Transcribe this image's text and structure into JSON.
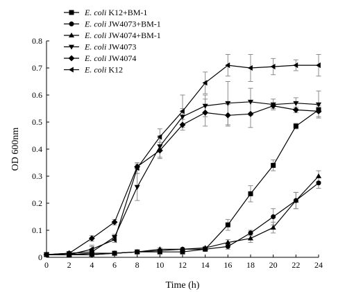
{
  "chart_data": {
    "type": "line",
    "xlabel": "Time (h)",
    "ylabel": "OD 600nm",
    "xlim": [
      0,
      24
    ],
    "ylim": [
      0,
      0.8
    ],
    "xticks": [
      0,
      2,
      4,
      6,
      8,
      10,
      12,
      14,
      16,
      18,
      20,
      22,
      24
    ],
    "yticks": [
      0,
      0.1,
      0.2,
      0.3,
      0.4,
      0.5,
      0.6,
      0.7,
      0.8
    ],
    "grid": false,
    "legend_position": "top-left",
    "x": [
      0,
      2,
      4,
      6,
      8,
      10,
      12,
      14,
      16,
      18,
      20,
      22,
      24
    ],
    "series": [
      {
        "name_italic": "E. coli",
        "name_rest": " K12+BM-1",
        "marker": "square",
        "values": [
          0.01,
          0.01,
          0.015,
          0.015,
          0.02,
          0.02,
          0.02,
          0.03,
          0.12,
          0.235,
          0.34,
          0.485,
          0.545
        ],
        "errors": [
          0.005,
          0.005,
          0.005,
          0.005,
          0.005,
          0.005,
          0.005,
          0.005,
          0.02,
          0.03,
          0.02,
          0.01,
          0.01
        ]
      },
      {
        "name_italic": "E. coli",
        "name_rest": " JW4073+BM-1",
        "marker": "circle",
        "values": [
          0.01,
          0.01,
          0.01,
          0.015,
          0.02,
          0.025,
          0.03,
          0.03,
          0.04,
          0.09,
          0.15,
          0.21,
          0.275
        ],
        "errors": [
          0.005,
          0.005,
          0.005,
          0.005,
          0.005,
          0.005,
          0.005,
          0.005,
          0.01,
          0.01,
          0.03,
          0.03,
          0.02
        ]
      },
      {
        "name_italic": "E. coli",
        "name_rest": " JW4074+BM-1",
        "marker": "triangle-up",
        "values": [
          0.01,
          0.01,
          0.01,
          0.015,
          0.02,
          0.03,
          0.03,
          0.035,
          0.055,
          0.07,
          0.11,
          0.21,
          0.3
        ],
        "errors": [
          0.005,
          0.005,
          0.005,
          0.005,
          0.005,
          0.005,
          0.005,
          0.005,
          0.01,
          0.015,
          0.02,
          0.03,
          0.02
        ]
      },
      {
        "name_italic": "E. coli",
        "name_rest": " JW4073",
        "marker": "triangle-down",
        "values": [
          0.01,
          0.015,
          0.02,
          0.075,
          0.26,
          0.41,
          0.52,
          0.56,
          0.57,
          0.575,
          0.565,
          0.57,
          0.565
        ],
        "errors": [
          0.005,
          0.005,
          0.02,
          0.01,
          0.05,
          0.04,
          0.03,
          0.04,
          0.08,
          0.05,
          0.02,
          0.02,
          0.05
        ]
      },
      {
        "name_italic": "E. coli",
        "name_rest": " JW4074",
        "marker": "diamond",
        "values": [
          0.01,
          0.015,
          0.07,
          0.13,
          0.335,
          0.395,
          0.49,
          0.535,
          0.525,
          0.53,
          0.56,
          0.545,
          0.54
        ],
        "errors": [
          0.005,
          0.005,
          0.01,
          0.01,
          0.01,
          0.03,
          0.02,
          0.05,
          0.04,
          0.05,
          0.01,
          0.01,
          0.02
        ]
      },
      {
        "name_italic": "E. coli",
        "name_rest": " K12",
        "marker": "triangle-left",
        "values": [
          0.01,
          0.01,
          0.03,
          0.065,
          0.33,
          0.445,
          0.54,
          0.645,
          0.71,
          0.7,
          0.705,
          0.71,
          0.71
        ],
        "errors": [
          0.005,
          0.005,
          0.015,
          0.01,
          0.02,
          0.03,
          0.06,
          0.04,
          0.04,
          0.05,
          0.03,
          0.02,
          0.04
        ]
      }
    ]
  }
}
